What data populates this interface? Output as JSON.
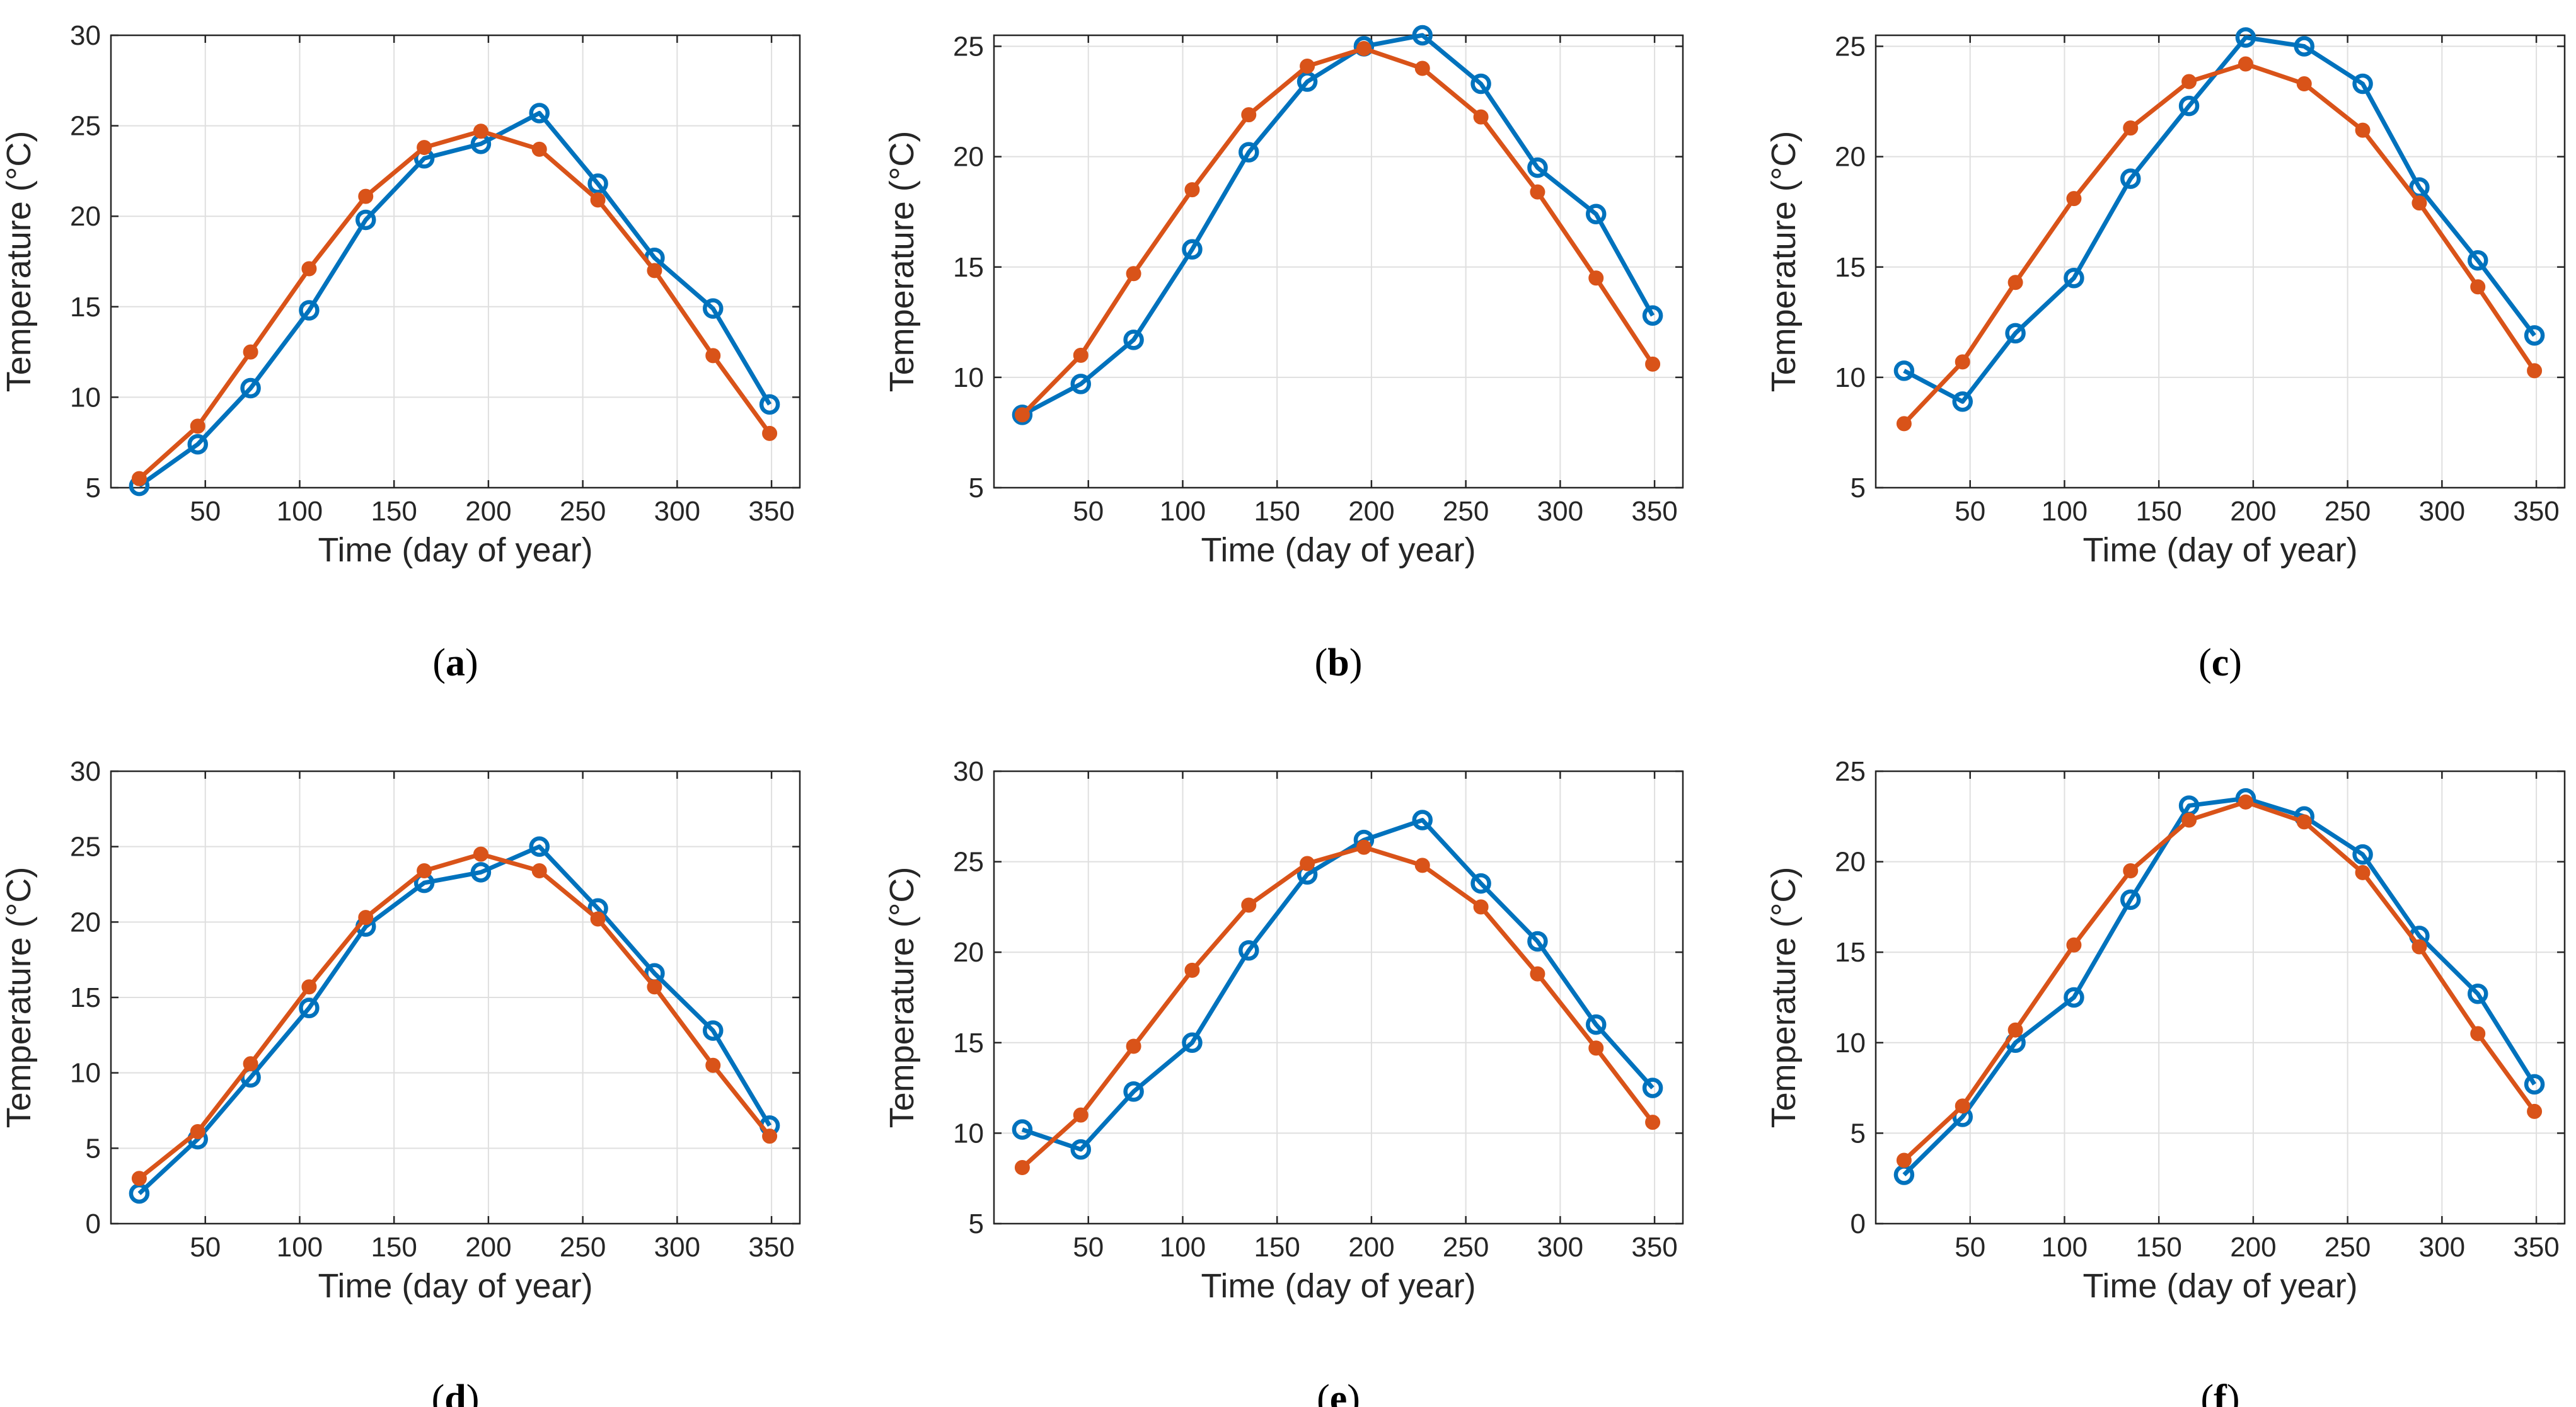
{
  "colors": {
    "series_blue": "#0072BD",
    "series_orange": "#D95319",
    "grid": "#DFDFDF",
    "axis": "#262626"
  },
  "chart_data": [
    {
      "type": "line",
      "panel": "a",
      "label_open": "(",
      "label_letter": "a",
      "label_close": ")",
      "xlabel": "Time (day of year)",
      "ylabel": "Temperature (°C)",
      "xlim": [
        0,
        365
      ],
      "ylim": [
        5,
        30
      ],
      "xticks": [
        50,
        100,
        150,
        200,
        250,
        300,
        350
      ],
      "yticks": [
        5,
        10,
        15,
        20,
        25,
        30
      ],
      "x": [
        15,
        46,
        74,
        105,
        135,
        166,
        196,
        227,
        258,
        288,
        319,
        349
      ],
      "series": [
        {
          "name": "series 1",
          "marker": "open-circle",
          "values": [
            5.1,
            7.4,
            10.5,
            14.8,
            19.8,
            23.2,
            24.0,
            25.7,
            21.8,
            17.7,
            14.9,
            9.6
          ]
        },
        {
          "name": "series 2",
          "marker": "filled-dot",
          "values": [
            5.5,
            8.4,
            12.5,
            17.1,
            21.1,
            23.8,
            24.7,
            23.7,
            20.9,
            17.0,
            12.3,
            8.0
          ]
        }
      ]
    },
    {
      "type": "line",
      "panel": "b",
      "label_open": "(",
      "label_letter": "b",
      "label_close": ")",
      "xlabel": "Time (day of year)",
      "ylabel": "Temperature (°C)",
      "xlim": [
        0,
        365
      ],
      "ylim": [
        5,
        25.5
      ],
      "xticks": [
        50,
        100,
        150,
        200,
        250,
        300,
        350
      ],
      "yticks": [
        5,
        10,
        15,
        20,
        25
      ],
      "x": [
        15,
        46,
        74,
        105,
        135,
        166,
        196,
        227,
        258,
        288,
        319,
        349
      ],
      "series": [
        {
          "name": "series 1",
          "marker": "open-circle",
          "values": [
            8.3,
            9.7,
            11.7,
            15.8,
            20.2,
            23.4,
            25.0,
            25.5,
            23.3,
            19.5,
            17.4,
            12.8
          ]
        },
        {
          "name": "series 2",
          "marker": "filled-dot",
          "values": [
            8.3,
            11.0,
            14.7,
            18.5,
            21.9,
            24.1,
            24.9,
            24.0,
            21.8,
            18.4,
            14.5,
            10.6
          ]
        }
      ]
    },
    {
      "type": "line",
      "panel": "c",
      "label_open": "(",
      "label_letter": "c",
      "label_close": ")",
      "xlabel": "Time (day of year)",
      "ylabel": "Temperature (°C)",
      "xlim": [
        0,
        365
      ],
      "ylim": [
        5,
        25.5
      ],
      "xticks": [
        50,
        100,
        150,
        200,
        250,
        300,
        350
      ],
      "yticks": [
        5,
        10,
        15,
        20,
        25
      ],
      "x": [
        15,
        46,
        74,
        105,
        135,
        166,
        196,
        227,
        258,
        288,
        319,
        349
      ],
      "series": [
        {
          "name": "series 1",
          "marker": "open-circle",
          "values": [
            10.3,
            8.9,
            12.0,
            14.5,
            19.0,
            22.3,
            25.4,
            25.0,
            23.3,
            18.6,
            15.3,
            11.9
          ]
        },
        {
          "name": "series 2",
          "marker": "filled-dot",
          "values": [
            7.9,
            10.7,
            14.3,
            18.1,
            21.3,
            23.4,
            24.2,
            23.3,
            21.2,
            17.9,
            14.1,
            10.3
          ]
        }
      ]
    },
    {
      "type": "line",
      "panel": "d",
      "label_open": "(",
      "label_letter": "d",
      "label_close": ")",
      "xlabel": "Time (day of year)",
      "ylabel": "Temperature (°C)",
      "xlim": [
        0,
        365
      ],
      "ylim": [
        0,
        30
      ],
      "xticks": [
        50,
        100,
        150,
        200,
        250,
        300,
        350
      ],
      "yticks": [
        0,
        5,
        10,
        15,
        20,
        25,
        30
      ],
      "x": [
        15,
        46,
        74,
        105,
        135,
        166,
        196,
        227,
        258,
        288,
        319,
        349
      ],
      "series": [
        {
          "name": "series 1",
          "marker": "open-circle",
          "values": [
            2.0,
            5.6,
            9.7,
            14.3,
            19.7,
            22.6,
            23.3,
            25.0,
            20.9,
            16.6,
            12.8,
            6.5
          ]
        },
        {
          "name": "series 2",
          "marker": "filled-dot",
          "values": [
            3.0,
            6.1,
            10.6,
            15.7,
            20.3,
            23.4,
            24.5,
            23.4,
            20.2,
            15.7,
            10.5,
            5.8
          ]
        }
      ]
    },
    {
      "type": "line",
      "panel": "e",
      "label_open": "(",
      "label_letter": "e",
      "label_close": ")",
      "xlabel": "Time (day of year)",
      "ylabel": "Temperature (°C)",
      "xlim": [
        0,
        365
      ],
      "ylim": [
        5,
        30
      ],
      "xticks": [
        50,
        100,
        150,
        200,
        250,
        300,
        350
      ],
      "yticks": [
        5,
        10,
        15,
        20,
        25,
        30
      ],
      "x": [
        15,
        46,
        74,
        105,
        135,
        166,
        196,
        227,
        258,
        288,
        319,
        349
      ],
      "series": [
        {
          "name": "series 1",
          "marker": "open-circle",
          "values": [
            10.2,
            9.1,
            12.3,
            15.0,
            20.1,
            24.3,
            26.2,
            27.3,
            23.8,
            20.6,
            16.0,
            12.5
          ]
        },
        {
          "name": "series 2",
          "marker": "filled-dot",
          "values": [
            8.1,
            11.0,
            14.8,
            19.0,
            22.6,
            24.9,
            25.8,
            24.8,
            22.5,
            18.8,
            14.7,
            10.6
          ]
        }
      ]
    },
    {
      "type": "line",
      "panel": "f",
      "label_open": "(",
      "label_letter": "f",
      "label_close": ")",
      "xlabel": "Time (day of year)",
      "ylabel": "Temperature (°C)",
      "xlim": [
        0,
        365
      ],
      "ylim": [
        0,
        25
      ],
      "xticks": [
        50,
        100,
        150,
        200,
        250,
        300,
        350
      ],
      "yticks": [
        0,
        5,
        10,
        15,
        20,
        25
      ],
      "x": [
        15,
        46,
        74,
        105,
        135,
        166,
        196,
        227,
        258,
        288,
        319,
        349
      ],
      "series": [
        {
          "name": "series 1",
          "marker": "open-circle",
          "values": [
            2.7,
            5.9,
            10.0,
            12.5,
            17.9,
            23.1,
            23.5,
            22.5,
            20.4,
            15.9,
            12.7,
            7.7
          ]
        },
        {
          "name": "series 2",
          "marker": "filled-dot",
          "values": [
            3.5,
            6.5,
            10.7,
            15.4,
            19.5,
            22.3,
            23.3,
            22.2,
            19.4,
            15.3,
            10.5,
            6.2
          ]
        }
      ]
    }
  ]
}
